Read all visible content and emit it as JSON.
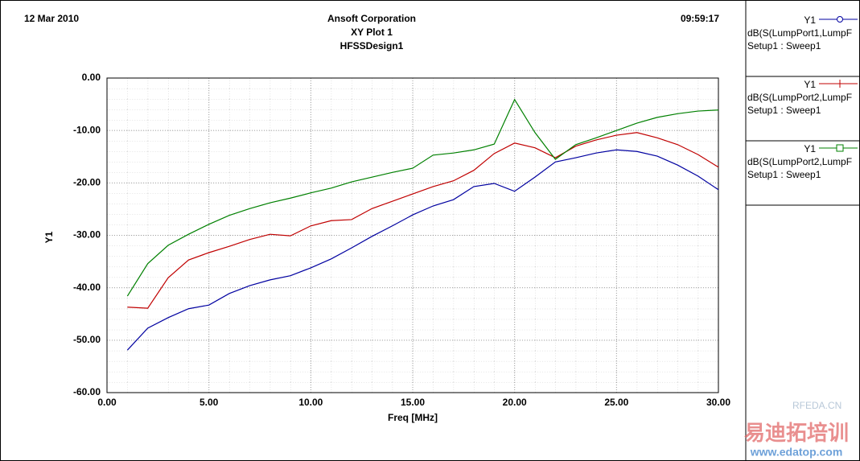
{
  "header": {
    "date": "12 Mar 2010",
    "company": "Ansoft Corporation",
    "time": "09:59:17"
  },
  "chart_data": {
    "type": "line",
    "title": "XY Plot 1",
    "subtitle": "HFSSDesign1",
    "x_label": "Freq [MHz]",
    "y_label": "Y1",
    "x": [
      1,
      2,
      3,
      4,
      5,
      6,
      7,
      8,
      9,
      10,
      11,
      12,
      13,
      14,
      15,
      16,
      17,
      18,
      19,
      20,
      21,
      22,
      23,
      24,
      25,
      26,
      27,
      28,
      29,
      30
    ],
    "xlim": [
      0,
      30
    ],
    "ylim": [
      -60,
      0
    ],
    "xticks": [
      {
        "value": 0,
        "label": "0.00"
      },
      {
        "value": 5,
        "label": "5.00"
      },
      {
        "value": 10,
        "label": "10.00"
      },
      {
        "value": 15,
        "label": "15.00"
      },
      {
        "value": 20,
        "label": "20.00"
      },
      {
        "value": 25,
        "label": "25.00"
      },
      {
        "value": 30,
        "label": "30.00"
      }
    ],
    "yticks": [
      {
        "value": 0,
        "label": "0.00"
      },
      {
        "value": -10,
        "label": "-10.00"
      },
      {
        "value": -20,
        "label": "-20.00"
      },
      {
        "value": -30,
        "label": "-30.00"
      },
      {
        "value": -40,
        "label": "-40.00"
      },
      {
        "value": -50,
        "label": "-50.00"
      },
      {
        "value": -60,
        "label": "-60.00"
      }
    ],
    "grid": true,
    "series": [
      {
        "legend_axis": "Y1",
        "name": "dB(S(LumpPort1,LumpF",
        "setup": "Setup1 : Sweep1",
        "color": "#0000a0",
        "marker": "circle",
        "values": [
          -51.9,
          -47.7,
          -45.7,
          -44.0,
          -43.3,
          -41.1,
          -39.6,
          -38.5,
          -37.7,
          -36.2,
          -34.5,
          -32.4,
          -30.2,
          -28.2,
          -26.1,
          -24.4,
          -23.2,
          -20.7,
          -20.1,
          -21.6,
          -18.9,
          -16.0,
          -15.2,
          -14.3,
          -13.7,
          -14.0,
          -14.9,
          -16.6,
          -18.7,
          -21.3
        ]
      },
      {
        "legend_axis": "Y1",
        "name": "dB(S(LumpPort2,LumpF",
        "setup": "Setup1 : Sweep1",
        "color": "#c00000",
        "marker": "plus",
        "values": [
          -43.7,
          -43.9,
          -38.1,
          -34.7,
          -33.3,
          -32.1,
          -30.8,
          -29.8,
          -30.1,
          -28.2,
          -27.2,
          -27.0,
          -24.9,
          -23.5,
          -22.1,
          -20.7,
          -19.6,
          -17.6,
          -14.4,
          -12.4,
          -13.3,
          -15.2,
          -13.0,
          -11.8,
          -10.9,
          -10.4,
          -11.4,
          -12.7,
          -14.6,
          -17.0
        ]
      },
      {
        "legend_axis": "Y1",
        "name": "dB(S(LumpPort2,LumpF",
        "setup": "Setup1 : Sweep1",
        "color": "#008000",
        "marker": "square",
        "values": [
          -41.6,
          -35.4,
          -31.9,
          -29.8,
          -27.9,
          -26.2,
          -24.9,
          -23.8,
          -22.9,
          -21.9,
          -21.0,
          -19.8,
          -18.9,
          -18.0,
          -17.2,
          -14.7,
          -14.3,
          -13.7,
          -12.6,
          -4.1,
          -10.4,
          -15.5,
          -12.7,
          -11.4,
          -10.0,
          -8.6,
          -7.5,
          -6.8,
          -6.3,
          -6.1
        ]
      }
    ]
  },
  "watermark": {
    "site": "RFEDA.CN",
    "brand": "易迪拓培训",
    "url": "www.edatop.com"
  }
}
